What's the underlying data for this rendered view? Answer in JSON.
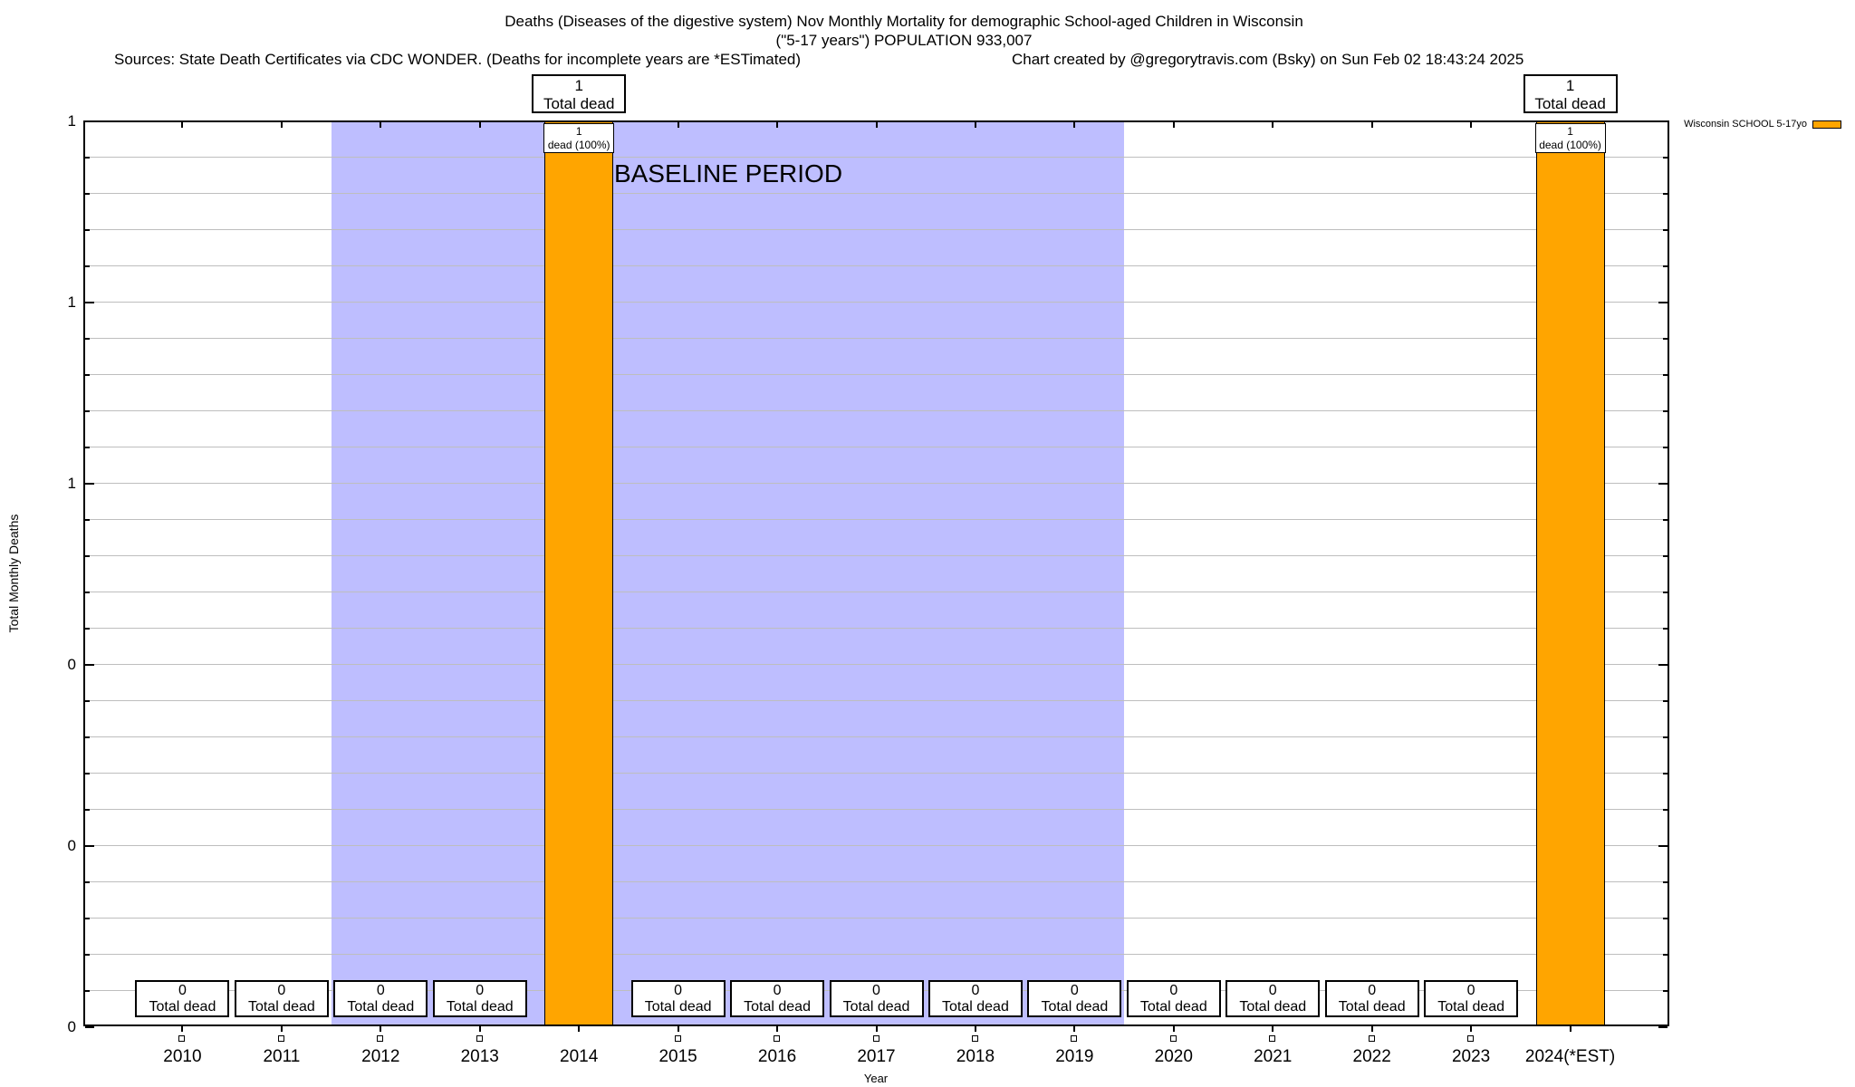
{
  "header": {
    "title_line1": "Deaths (Diseases of the digestive system) Nov Monthly Mortality for demographic School-aged Children in Wisconsin",
    "title_line2": "(\"5-17 years\") POPULATION 933,007",
    "sources": "Sources: State Death Certificates via CDC WONDER. (Deaths for incomplete years are *ESTimated)",
    "credit": "Chart created by @gregorytravis.com (Bsky) on Sun Feb 02 18:43:24 2025"
  },
  "chart_data": {
    "type": "bar",
    "title": "Deaths (Diseases of the digestive system) Nov Monthly Mortality for demographic School-aged Children in Wisconsin",
    "subtitle": "(\"5-17 years\") POPULATION 933,007",
    "categories": [
      "2010",
      "2011",
      "2012",
      "2013",
      "2014",
      "2015",
      "2016",
      "2017",
      "2018",
      "2019",
      "2020",
      "2021",
      "2022",
      "2023",
      "2024(*EST)"
    ],
    "series": [
      {
        "name": "Wisconsin SCHOOL 5-17yo",
        "color": "#FFA500",
        "values": [
          0,
          0,
          0,
          0,
          1,
          0,
          0,
          0,
          0,
          0,
          0,
          0,
          0,
          0,
          1
        ]
      }
    ],
    "xlabel": "Year",
    "ylabel": "Total Monthly Deaths",
    "ylim": [
      0,
      1
    ],
    "y_tick_labels_top_to_bottom": [
      "1",
      "1",
      "1",
      "0",
      "0",
      "0"
    ],
    "grid": true,
    "legend_position": "top-right-outside",
    "baseline_region": {
      "label": "BASELINE PERIOD",
      "from_index": 1.5,
      "to_index": 9.5,
      "color": "#bebeff"
    },
    "annotations": {
      "total_dead_label": "Total dead",
      "dead_pct_label": "dead (100%)"
    }
  }
}
